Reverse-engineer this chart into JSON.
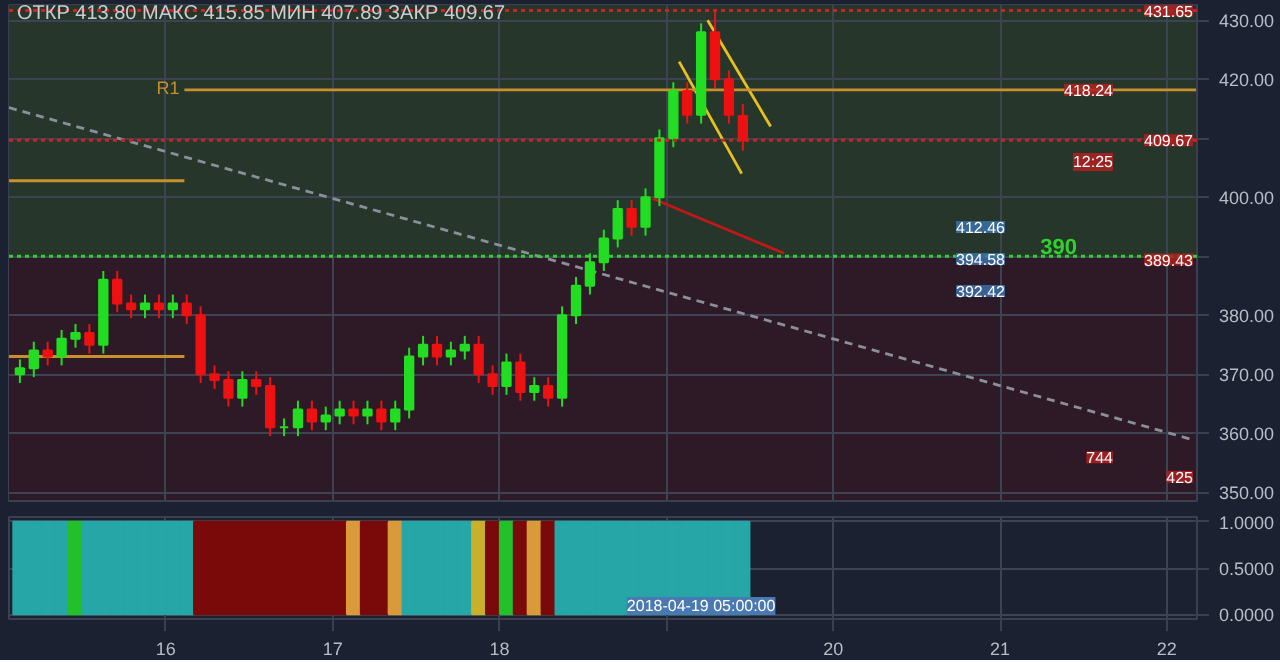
{
  "chart_data": [
    {
      "type": "candlestick",
      "annotations": [
        "ОТКР 413.80  МАКС 415.85  МИН 407.89  ЗАКР 409.67",
        {
          "text": "R1",
          "x": "2018-04-16T02:40",
          "y": 418.24
        },
        {
          "text": "431.65",
          "y": 431.65
        },
        {
          "text": "418.24",
          "y": 418.24
        },
        "412.46",
        {
          "text": "409.67",
          "y": 409.67
        },
        {
          "text": "12:25",
          "y": 406
        },
        "394.58",
        "392.42",
        {
          "text": "389.43",
          "y": 389.43
        },
        {
          "text": "744",
          "y": 355.9
        },
        {
          "text": "425",
          "y": 352.6
        }
      ],
      "x": [
        "2018-04-15T03:00",
        "2018-04-15T05:00",
        "2018-04-15T07:00",
        "2018-04-15T09:00",
        "2018-04-15T11:00",
        "2018-04-15T13:00",
        "2018-04-15T15:00",
        "2018-04-15T17:00",
        "2018-04-15T19:00",
        "2018-04-15T21:00",
        "2018-04-15T23:00",
        "2018-04-16T01:00",
        "2018-04-16T03:00",
        "2018-04-16T05:00",
        "2018-04-16T07:00",
        "2018-04-16T09:00",
        "2018-04-16T11:00",
        "2018-04-16T13:00",
        "2018-04-16T15:00",
        "2018-04-16T17:00",
        "2018-04-16T19:00",
        "2018-04-16T21:00",
        "2018-04-16T23:00",
        "2018-04-17T01:00",
        "2018-04-17T03:00",
        "2018-04-17T05:00",
        "2018-04-17T07:00",
        "2018-04-17T09:00",
        "2018-04-17T11:00",
        "2018-04-17T13:00",
        "2018-04-17T15:00",
        "2018-04-17T17:00",
        "2018-04-17T19:00",
        "2018-04-17T21:00",
        "2018-04-17T23:00",
        "2018-04-18T01:00",
        "2018-04-18T03:00",
        "2018-04-18T05:00",
        "2018-04-18T07:00",
        "2018-04-18T09:00",
        "2018-04-18T11:00",
        "2018-04-18T13:00",
        "2018-04-18T15:00",
        "2018-04-18T17:00",
        "2018-04-18T19:00",
        "2018-04-18T21:00",
        "2018-04-18T23:00",
        "2018-04-19T01:00",
        "2018-04-19T03:00",
        "2018-04-19T05:00",
        "2018-04-19T07:00",
        "2018-04-19T09:00",
        "2018-04-19T11:00"
      ],
      "ohlc": [
        [
          370,
          372.5,
          368.5,
          371
        ],
        [
          371,
          375.5,
          369.5,
          374
        ],
        [
          374,
          375.5,
          371.5,
          373
        ],
        [
          373,
          377.5,
          371.5,
          376
        ],
        [
          376,
          378.5,
          374.5,
          377
        ],
        [
          377,
          378.5,
          373.5,
          375
        ],
        [
          375,
          387.5,
          373.5,
          386
        ],
        [
          386,
          387.5,
          380.5,
          382
        ],
        [
          382,
          383.5,
          379.5,
          381
        ],
        [
          381,
          383.5,
          379.5,
          382
        ],
        [
          382,
          383.5,
          379.5,
          381
        ],
        [
          381,
          383.5,
          379.5,
          382
        ],
        [
          382,
          383.5,
          378.5,
          380
        ],
        [
          380,
          381.5,
          368.5,
          370
        ],
        [
          370,
          371.5,
          367.5,
          369
        ],
        [
          369,
          370.5,
          364.5,
          366
        ],
        [
          366,
          370.5,
          364.5,
          369
        ],
        [
          369,
          370.5,
          366.5,
          368
        ],
        [
          368,
          369.5,
          359.5,
          361
        ],
        [
          361,
          362.5,
          359.5,
          361
        ],
        [
          361,
          365.5,
          359.5,
          364
        ],
        [
          364,
          365.5,
          360.5,
          362
        ],
        [
          362,
          364.5,
          360.5,
          363
        ],
        [
          363,
          365.5,
          361.5,
          364
        ],
        [
          364,
          365.5,
          361.5,
          363
        ],
        [
          363,
          365.5,
          361.5,
          364
        ],
        [
          364,
          365.5,
          360.5,
          362
        ],
        [
          362,
          365.5,
          360.5,
          364
        ],
        [
          364,
          374.5,
          362.5,
          373
        ],
        [
          373,
          376.5,
          371.5,
          375
        ],
        [
          375,
          376.5,
          371.5,
          373
        ],
        [
          373,
          375.5,
          371.5,
          374
        ],
        [
          374,
          376.5,
          372.5,
          375
        ],
        [
          375,
          376.5,
          368.5,
          370
        ],
        [
          370,
          371.5,
          366.5,
          368
        ],
        [
          368,
          373.5,
          366.5,
          372
        ],
        [
          372,
          373.5,
          365.5,
          367
        ],
        [
          367,
          369.5,
          365.5,
          368
        ],
        [
          368,
          369.5,
          364.5,
          366
        ],
        [
          366,
          381.5,
          364.5,
          380
        ],
        [
          380,
          386.5,
          378.5,
          385
        ],
        [
          385,
          390.5,
          383.5,
          389
        ],
        [
          389,
          394.5,
          387.5,
          393
        ],
        [
          393,
          399.5,
          391.5,
          398
        ],
        [
          398,
          399.5,
          393.5,
          395
        ],
        [
          395,
          401.5,
          393.5,
          400
        ],
        [
          400,
          411.5,
          398.5,
          410
        ],
        [
          410,
          419.5,
          408.5,
          418
        ],
        [
          418,
          419.5,
          412.5,
          414
        ],
        [
          414,
          429.5,
          412.5,
          428
        ],
        [
          428,
          431.65,
          418.5,
          420
        ],
        [
          420,
          421.5,
          412.5,
          414
        ],
        [
          413.8,
          415.85,
          407.89,
          409.67
        ]
      ],
      "series": [
        {
          "type": "line",
          "color": "#8a8f99",
          "line_style": "dashed",
          "x": [
            "2018-04-15T01:26",
            "2018-04-22T04:00"
          ],
          "values": [
            415.2,
            358.8
          ]
        },
        {
          "type": "line",
          "color": "#e8c020",
          "x": [
            "2018-04-19T05:56",
            "2018-04-19T15:00"
          ],
          "values": [
            430,
            412
          ]
        },
        {
          "type": "line",
          "color": "#e8c020",
          "x": [
            "2018-04-19T01:50",
            "2018-04-19T10:50"
          ],
          "values": [
            423,
            404
          ]
        },
        {
          "type": "line",
          "color": "#c01818",
          "x": [
            "2018-04-18T22:00",
            "2018-04-19T16:55"
          ],
          "values": [
            399.8,
            390.5
          ]
        },
        {
          "type": "line",
          "color": "#c8902a",
          "x": [
            "2018-04-15T01:26",
            "2018-04-16T02:40"
          ],
          "values": [
            402.8,
            402.8
          ]
        },
        {
          "type": "line",
          "color": "#c8902a",
          "x": [
            "2018-04-15T01:26",
            "2018-04-16T02:40"
          ],
          "values": [
            373,
            373
          ]
        },
        {
          "type": "line",
          "color": "#c8902a",
          "x": [
            "2018-04-16T02:40",
            "2018-04-22T04:20"
          ],
          "values": [
            418.2,
            418.2
          ]
        }
      ],
      "ref_lines": [
        {
          "axis": "y",
          "value": 431.65,
          "color": "#d02020",
          "line_style": "dotted"
        },
        {
          "axis": "y",
          "value": 409.67,
          "color": "#d02020",
          "line_style": "dotted"
        },
        {
          "axis": "y",
          "value": 390,
          "label": "390",
          "color": "#30d030",
          "line_style": "dotted"
        }
      ],
      "bands": [
        {
          "axis": "y",
          "from": 390,
          "to": 432.6,
          "color": "#26362a"
        },
        {
          "axis": "y",
          "from": 348.5,
          "to": 390,
          "color": "#2e1a26"
        }
      ],
      "xlim": [
        "2018-04-15T01:26",
        "2018-04-22T04:20"
      ],
      "ylim": [
        348.5,
        432.6
      ],
      "yticks": [
        {
          "value": 350,
          "label": "350.00"
        },
        {
          "value": 360,
          "label": "360.00"
        },
        {
          "value": 370,
          "label": "370.00"
        },
        {
          "value": 380,
          "label": "380.00"
        },
        {
          "value": 390,
          "label": null
        },
        {
          "value": 400,
          "label": "400.00"
        },
        {
          "value": 410,
          "label": null
        },
        {
          "value": 420,
          "label": "420.00"
        },
        {
          "value": 430,
          "label": "430.00"
        }
      ],
      "xticks": [
        {
          "value": "2018-04-16",
          "label": null
        },
        {
          "value": "2018-04-17",
          "label": null
        },
        {
          "value": "2018-04-18",
          "label": null
        },
        {
          "value": "2018-04-19",
          "label": null
        },
        {
          "value": "2018-04-20",
          "label": null
        },
        {
          "value": "2018-04-21",
          "label": null
        },
        {
          "value": "2018-04-22",
          "label": null
        }
      ],
      "tick_labels": "y",
      "grid": true
    },
    {
      "type": "bar",
      "annotations": [
        {
          "text": "2018-04-19 05:00:00",
          "x": "2018-04-19T05:00"
        }
      ],
      "x": [
        "2018-04-15T03:00",
        "2018-04-15T05:00",
        "2018-04-15T07:00",
        "2018-04-15T09:00",
        "2018-04-15T11:00",
        "2018-04-15T13:00",
        "2018-04-15T15:00",
        "2018-04-15T17:00",
        "2018-04-15T19:00",
        "2018-04-15T21:00",
        "2018-04-15T23:00",
        "2018-04-16T01:00",
        "2018-04-16T03:00",
        "2018-04-16T05:00",
        "2018-04-16T07:00",
        "2018-04-16T09:00",
        "2018-04-16T11:00",
        "2018-04-16T13:00",
        "2018-04-16T15:00",
        "2018-04-16T17:00",
        "2018-04-16T19:00",
        "2018-04-16T21:00",
        "2018-04-16T23:00",
        "2018-04-17T01:00",
        "2018-04-17T03:00",
        "2018-04-17T05:00",
        "2018-04-17T07:00",
        "2018-04-17T09:00",
        "2018-04-17T11:00",
        "2018-04-17T13:00",
        "2018-04-17T15:00",
        "2018-04-17T17:00",
        "2018-04-17T19:00",
        "2018-04-17T21:00",
        "2018-04-17T23:00",
        "2018-04-18T01:00",
        "2018-04-18T03:00",
        "2018-04-18T05:00",
        "2018-04-18T07:00",
        "2018-04-18T09:00",
        "2018-04-18T11:00",
        "2018-04-18T13:00",
        "2018-04-18T15:00",
        "2018-04-18T17:00",
        "2018-04-18T19:00",
        "2018-04-18T21:00",
        "2018-04-18T23:00",
        "2018-04-19T01:00",
        "2018-04-19T03:00",
        "2018-04-19T05:00",
        "2018-04-19T07:00",
        "2018-04-19T09:00",
        "2018-04-19T11:00"
      ],
      "values": [
        1,
        1,
        1,
        1,
        1,
        1,
        1,
        1,
        1,
        1,
        1,
        1,
        1,
        1,
        1,
        1,
        1,
        1,
        1,
        1,
        1,
        1,
        1,
        1,
        1,
        1,
        1,
        1,
        1,
        1,
        1,
        1,
        1,
        1,
        1,
        1,
        1,
        1,
        1,
        1,
        1,
        1,
        1,
        1,
        1,
        1,
        1,
        1,
        1,
        1,
        1,
        1,
        1
      ],
      "colors": [
        "#26a6a6",
        "#26a6a6",
        "#26a6a6",
        "#26a6a6",
        "#22c02a",
        "#26a6a6",
        "#26a6a6",
        "#26a6a6",
        "#26a6a6",
        "#26a6a6",
        "#26a6a6",
        "#26a6a6",
        "#26a6a6",
        "#7a0a0a",
        "#7a0a0a",
        "#7a0a0a",
        "#7a0a0a",
        "#7a0a0a",
        "#7a0a0a",
        "#7a0a0a",
        "#7a0a0a",
        "#7a0a0a",
        "#7a0a0a",
        "#7a0a0a",
        "#d99a3a",
        "#7a0a0a",
        "#7a0a0a",
        "#d99a3a",
        "#26a6a6",
        "#26a6a6",
        "#26a6a6",
        "#26a6a6",
        "#26a6a6",
        "#c8b02a",
        "#7a0a0a",
        "#22c02a",
        "#7a0a0a",
        "#d99a3a",
        "#7a0a0a",
        "#26a6a6",
        "#26a6a6",
        "#26a6a6",
        "#26a6a6",
        "#26a6a6",
        "#26a6a6",
        "#26a6a6",
        "#26a6a6",
        "#26a6a6",
        "#26a6a6",
        "#26a6a6",
        "#26a6a6",
        "#26a6a6",
        "#26a6a6"
      ],
      "xlim": [
        "2018-04-15T01:26",
        "2018-04-22T04:20"
      ],
      "ylim": [
        -0.05,
        1.05
      ],
      "yticks": [
        {
          "value": 0,
          "label": "0.0000"
        },
        {
          "value": 0.5,
          "label": "0.5000"
        },
        {
          "value": 1,
          "label": "1.0000"
        }
      ],
      "xticks": [
        {
          "value": "2018-04-16",
          "label": "16"
        },
        {
          "value": "2018-04-17",
          "label": "17"
        },
        {
          "value": "2018-04-18",
          "label": "18"
        },
        {
          "value": "2018-04-19",
          "label": null
        },
        {
          "value": "2018-04-20",
          "label": "20"
        },
        {
          "value": "2018-04-21",
          "label": "21"
        },
        {
          "value": "2018-04-22",
          "label": "22"
        }
      ],
      "grid": true
    }
  ]
}
